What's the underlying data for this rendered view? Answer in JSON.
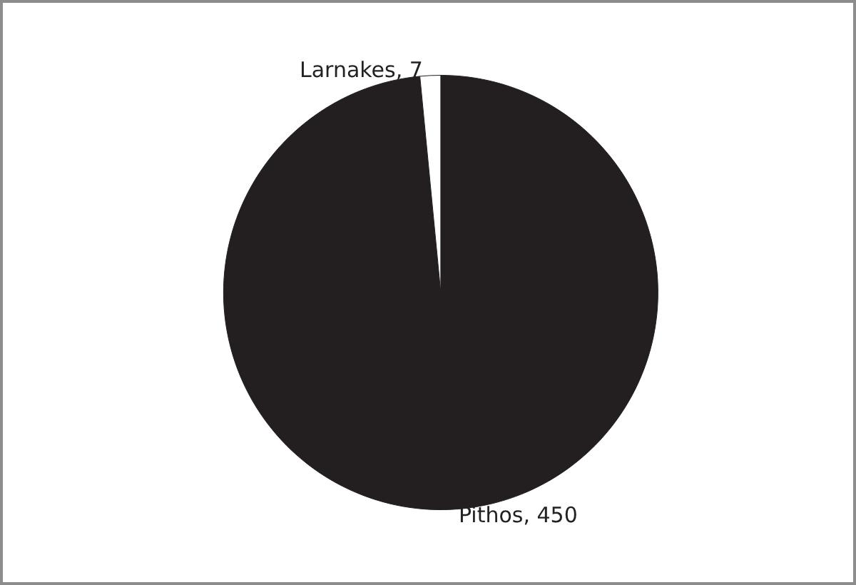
{
  "chart_data": {
    "type": "pie",
    "categories": [
      "Pithos",
      "Larnakes"
    ],
    "values": [
      450,
      7
    ],
    "colors": [
      "#231f20",
      "#ffffff"
    ],
    "value_labels": [
      ", 450",
      ", 7"
    ],
    "legend": false
  }
}
